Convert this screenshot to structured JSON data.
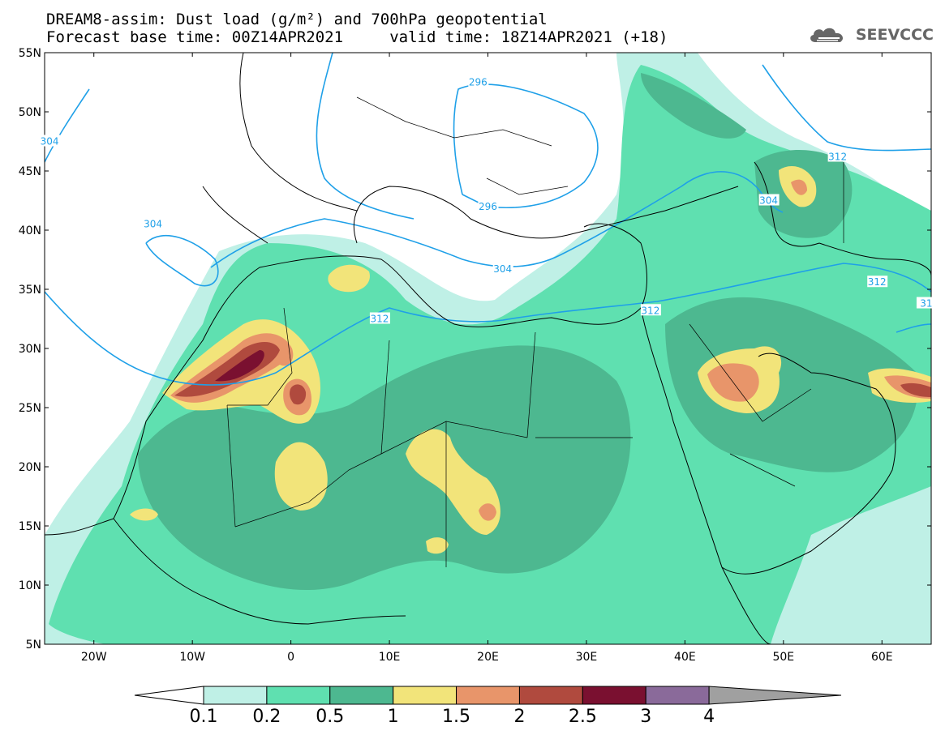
{
  "title": {
    "line1": "DREAM8-assim: Dust load (g/m²) and 700hPa geopotential",
    "line2": "Forecast base time: 00Z14APR2021     valid time: 18Z14APR2021 (+18)"
  },
  "logo": {
    "text": "SEEVCCC",
    "icon": "cloud-icon"
  },
  "map": {
    "lon_range": [
      -25,
      65
    ],
    "lat_range": [
      5,
      55
    ],
    "lon_ticks": [
      {
        "value": -20,
        "label": "20W"
      },
      {
        "value": -10,
        "label": "10W"
      },
      {
        "value": 0,
        "label": "0"
      },
      {
        "value": 10,
        "label": "10E"
      },
      {
        "value": 20,
        "label": "20E"
      },
      {
        "value": 30,
        "label": "30E"
      },
      {
        "value": 40,
        "label": "40E"
      },
      {
        "value": 50,
        "label": "50E"
      },
      {
        "value": 60,
        "label": "60E"
      }
    ],
    "lat_ticks": [
      {
        "value": 55,
        "label": "55N"
      },
      {
        "value": 50,
        "label": "50N"
      },
      {
        "value": 45,
        "label": "45N"
      },
      {
        "value": 40,
        "label": "40N"
      },
      {
        "value": 35,
        "label": "35N"
      },
      {
        "value": 30,
        "label": "30N"
      },
      {
        "value": 25,
        "label": "25N"
      },
      {
        "value": 20,
        "label": "20N"
      },
      {
        "value": 15,
        "label": "15N"
      },
      {
        "value": 10,
        "label": "10N"
      },
      {
        "value": 5,
        "label": "5N"
      }
    ],
    "contour_labels": [
      {
        "text": "304",
        "lon": -24.5,
        "lat": 47.5
      },
      {
        "text": "304",
        "lon": -14,
        "lat": 40.5
      },
      {
        "text": "296",
        "lon": 19,
        "lat": 52.5
      },
      {
        "text": "296",
        "lon": 20,
        "lat": 42
      },
      {
        "text": "304",
        "lon": 21.5,
        "lat": 36.7
      },
      {
        "text": "312",
        "lon": 9,
        "lat": 32.5
      },
      {
        "text": "312",
        "lon": 36.5,
        "lat": 33.2
      },
      {
        "text": "304",
        "lon": 48.5,
        "lat": 42.5
      },
      {
        "text": "312",
        "lon": 55.5,
        "lat": 46.2
      },
      {
        "text": "312",
        "lon": 59.5,
        "lat": 35.6
      },
      {
        "text": "31",
        "lon": 64.5,
        "lat": 33.8
      }
    ]
  },
  "colorbar": {
    "labels": [
      "0.1",
      "0.2",
      "0.5",
      "1",
      "1.5",
      "2",
      "2.5",
      "3",
      "4"
    ],
    "colors": [
      "#bff0e6",
      "#5fe0b0",
      "#4db890",
      "#f2e47a",
      "#e8956a",
      "#b04a3e",
      "#7a1030",
      "#8a6a9a",
      "#a0a0a0"
    ]
  },
  "colors": {
    "contour": "#1fa0e8",
    "coast": "#000000",
    "dust_low": "#bff0e6",
    "dust_mid": "#5fe0b0",
    "dust_high": "#4db890",
    "dust_1": "#f2e47a",
    "dust_15": "#e8956a",
    "dust_2": "#b04a3e",
    "dust_25": "#7a1030"
  }
}
